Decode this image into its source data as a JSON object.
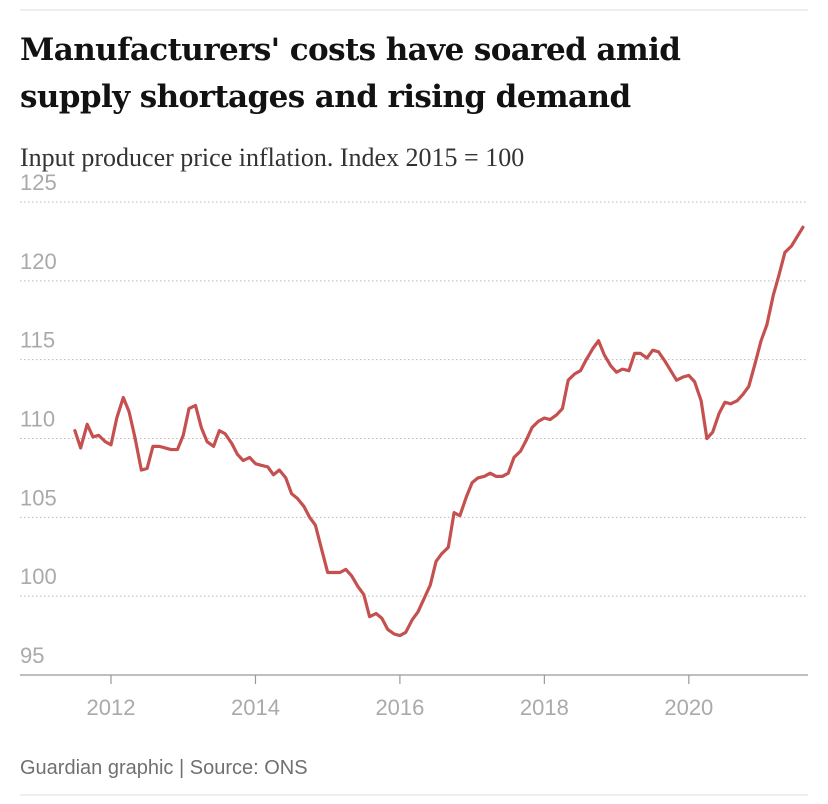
{
  "chart_data": {
    "type": "line",
    "title": [
      "Manufacturers' costs have soared amid",
      "supply shortages and rising demand"
    ],
    "subtitle": "Input producer price inflation. Index 2015 = 100",
    "source": "Guardian graphic | Source: ONS",
    "color": "#c4504f",
    "x": [
      2011.5,
      2011.58,
      2011.67,
      2011.75,
      2011.83,
      2011.92,
      2012.0,
      2012.08,
      2012.17,
      2012.25,
      2012.33,
      2012.42,
      2012.5,
      2012.58,
      2012.67,
      2012.75,
      2012.83,
      2012.92,
      2013.0,
      2013.08,
      2013.17,
      2013.25,
      2013.33,
      2013.42,
      2013.5,
      2013.58,
      2013.67,
      2013.75,
      2013.83,
      2013.92,
      2014.0,
      2014.08,
      2014.17,
      2014.25,
      2014.33,
      2014.42,
      2014.5,
      2014.58,
      2014.67,
      2014.75,
      2014.83,
      2014.92,
      2015.0,
      2015.08,
      2015.17,
      2015.25,
      2015.33,
      2015.42,
      2015.5,
      2015.58,
      2015.67,
      2015.75,
      2015.83,
      2015.92,
      2016.0,
      2016.08,
      2016.17,
      2016.25,
      2016.33,
      2016.42,
      2016.5,
      2016.58,
      2016.67,
      2016.75,
      2016.83,
      2016.92,
      2017.0,
      2017.08,
      2017.17,
      2017.25,
      2017.33,
      2017.42,
      2017.5,
      2017.58,
      2017.67,
      2017.75,
      2017.83,
      2017.92,
      2018.0,
      2018.08,
      2018.17,
      2018.25,
      2018.33,
      2018.42,
      2018.5,
      2018.58,
      2018.67,
      2018.75,
      2018.83,
      2018.92,
      2019.0,
      2019.08,
      2019.17,
      2019.25,
      2019.33,
      2019.42,
      2019.5,
      2019.58,
      2019.67,
      2019.75,
      2019.83,
      2019.92,
      2020.0,
      2020.08,
      2020.17,
      2020.25,
      2020.33,
      2020.42,
      2020.5,
      2020.58,
      2020.67,
      2020.75,
      2020.83,
      2020.92,
      2021.0,
      2021.08,
      2021.17,
      2021.25,
      2021.33,
      2021.42,
      2021.5,
      2021.58
    ],
    "values": [
      110.5,
      109.4,
      110.9,
      110.1,
      110.2,
      109.8,
      109.6,
      111.3,
      112.6,
      111.7,
      110.1,
      108.0,
      108.1,
      109.5,
      109.5,
      109.4,
      109.3,
      109.3,
      110.2,
      111.9,
      112.1,
      110.7,
      109.8,
      109.5,
      110.5,
      110.3,
      109.7,
      109.0,
      108.6,
      108.8,
      108.4,
      108.3,
      108.2,
      107.7,
      108.0,
      107.5,
      106.5,
      106.2,
      105.7,
      105.0,
      104.5,
      102.9,
      101.5,
      101.5,
      101.5,
      101.7,
      101.3,
      100.6,
      100.1,
      98.7,
      98.9,
      98.6,
      97.9,
      97.6,
      97.5,
      97.7,
      98.5,
      99.0,
      99.8,
      100.7,
      102.2,
      102.7,
      103.1,
      105.3,
      105.1,
      106.3,
      107.2,
      107.5,
      107.6,
      107.8,
      107.6,
      107.6,
      107.8,
      108.8,
      109.2,
      109.9,
      110.7,
      111.1,
      111.3,
      111.2,
      111.5,
      111.9,
      113.7,
      114.1,
      114.3,
      115.0,
      115.7,
      116.2,
      115.3,
      114.6,
      114.2,
      114.4,
      114.3,
      115.4,
      115.4,
      115.1,
      115.6,
      115.5,
      114.9,
      114.3,
      113.7,
      113.9,
      114.0,
      113.6,
      112.4,
      110.0,
      110.4,
      111.6,
      112.3,
      112.2,
      112.4,
      112.8,
      113.3,
      114.8,
      116.2,
      117.2,
      119.1,
      120.4,
      121.8,
      122.2,
      122.8,
      123.4
    ],
    "xlim": [
      2010.74,
      2021.65
    ],
    "xticks": [
      2012,
      2014,
      2016,
      2018,
      2020
    ],
    "ylim": [
      95,
      125
    ],
    "yticks": [
      95,
      100,
      105,
      110,
      115,
      120,
      125
    ],
    "grid": true
  }
}
